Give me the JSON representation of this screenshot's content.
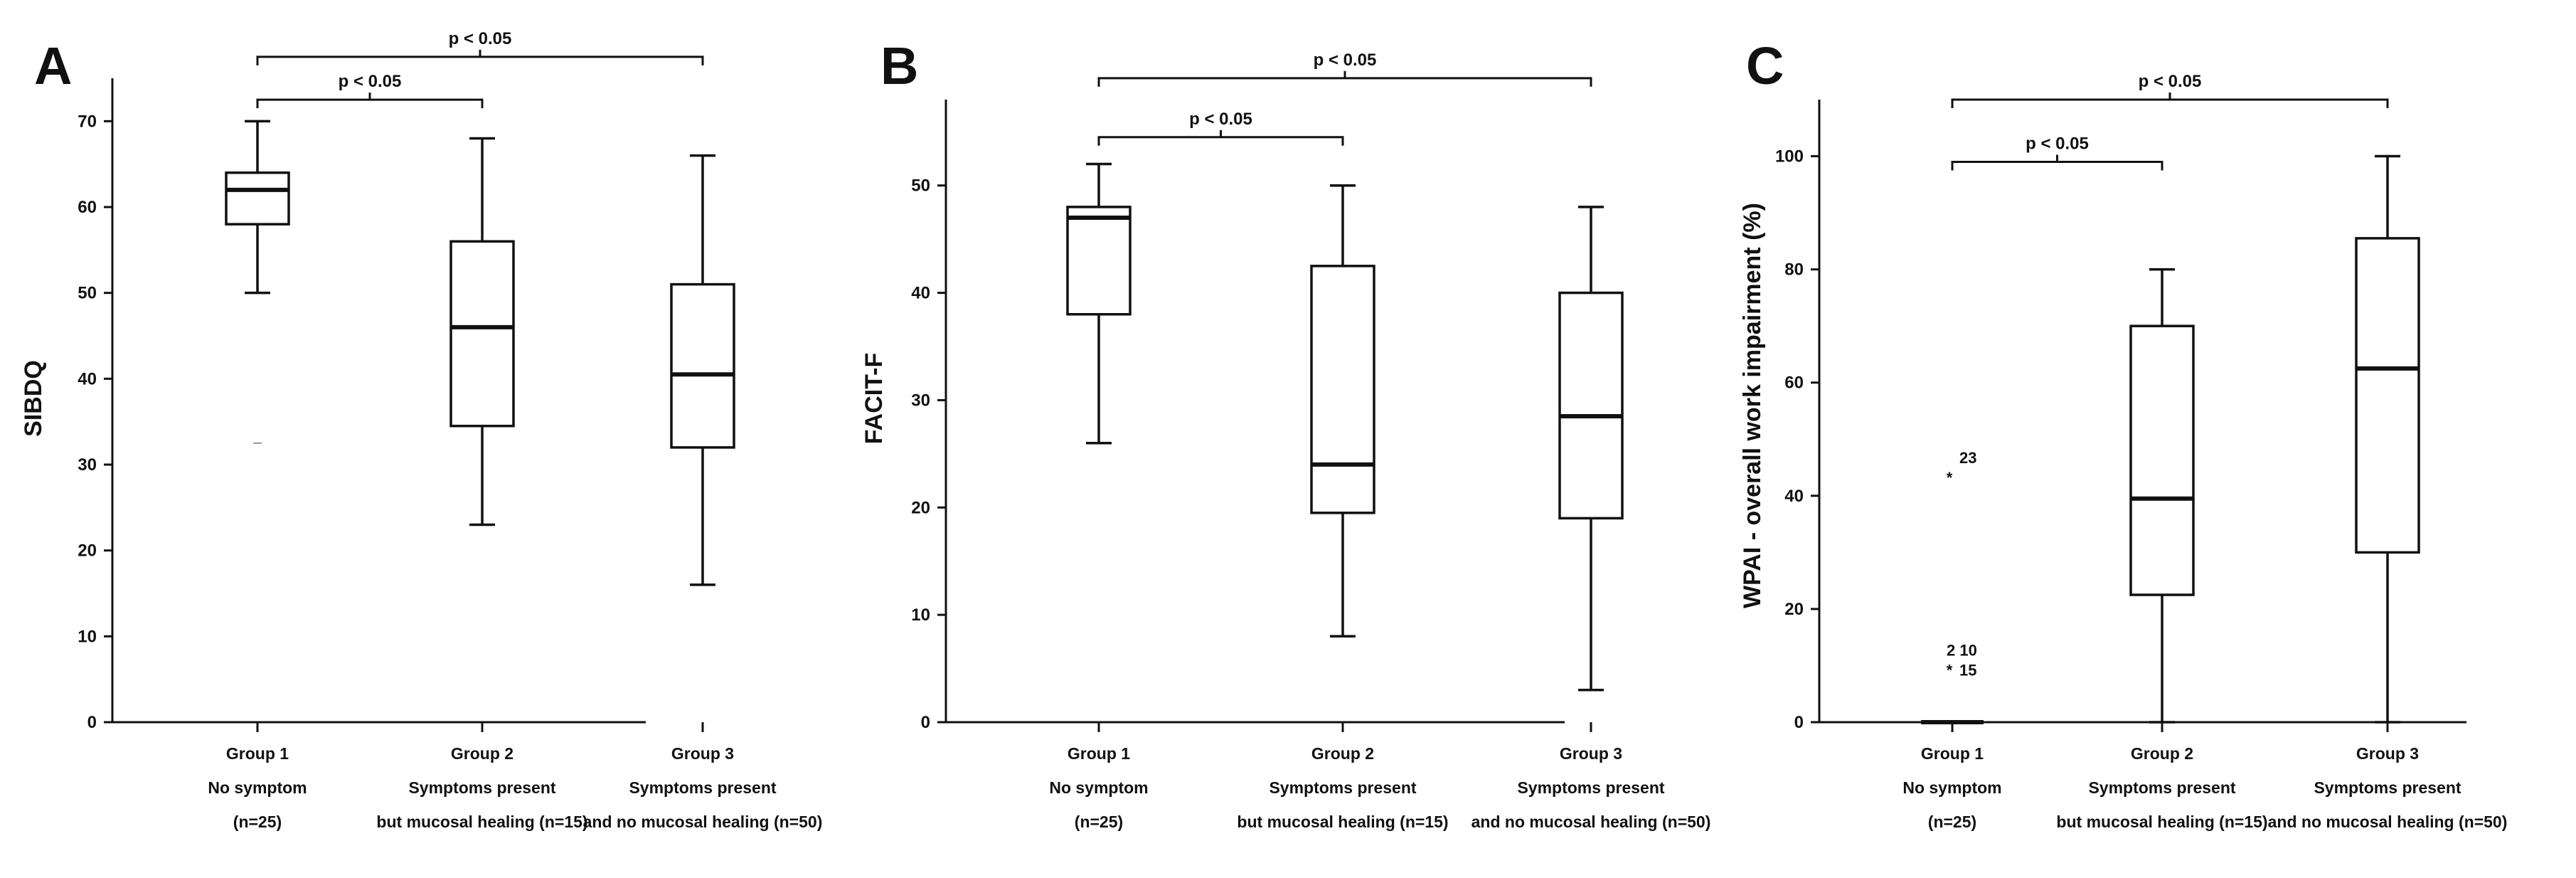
{
  "figure": {
    "colors": {
      "ink": "#111111",
      "box_fill": "#ffffff",
      "background": "#ffffff"
    }
  },
  "chart_data": [
    {
      "type": "box",
      "panel": "A",
      "ylabel": "SIBDQ",
      "ylim": [
        0,
        75
      ],
      "yticks": [
        0,
        10,
        20,
        30,
        40,
        50,
        60,
        70
      ],
      "categories": [
        [
          "Group 1",
          "No symptom",
          "(n=25)"
        ],
        [
          "Group 2",
          "Symptoms present",
          "but mucosal healing (n=15)"
        ],
        [
          "Group 3",
          "Symptoms present",
          "and no mucosal healing (n=50)"
        ]
      ],
      "boxes": [
        {
          "min": 50,
          "q1": 58,
          "median": 62,
          "q3": 64,
          "max": 70
        },
        {
          "min": 23,
          "q1": 34.5,
          "median": 46,
          "q3": 56,
          "max": 68
        },
        {
          "min": 16,
          "q1": 32,
          "median": 40.5,
          "q3": 51,
          "max": 66
        }
      ],
      "outliers": [
        {
          "group": 0,
          "value": 32.5,
          "label": ""
        }
      ],
      "comparisons": [
        {
          "from": 0,
          "to": 1,
          "label": "p < 0.05",
          "level": 72.5
        },
        {
          "from": 0,
          "to": 2,
          "label": "p < 0.05",
          "level": 77.5
        }
      ]
    },
    {
      "type": "box",
      "panel": "B",
      "ylabel": "FACIT-F",
      "ylim": [
        0,
        58
      ],
      "yticks": [
        0,
        10,
        20,
        30,
        40,
        50
      ],
      "categories": [
        [
          "Group 1",
          "No symptom",
          "(n=25)"
        ],
        [
          "Group 2",
          "Symptoms present",
          "but mucosal healing (n=15)"
        ],
        [
          "Group 3",
          "Symptoms present",
          "and no mucosal healing (n=50)"
        ]
      ],
      "boxes": [
        {
          "min": 26,
          "q1": 38,
          "median": 47,
          "q3": 48,
          "max": 52
        },
        {
          "min": 8,
          "q1": 19.5,
          "median": 24,
          "q3": 42.5,
          "max": 50
        },
        {
          "min": 3,
          "q1": 19,
          "median": 28.5,
          "q3": 40,
          "max": 48
        }
      ],
      "outliers": [],
      "comparisons": [
        {
          "from": 0,
          "to": 1,
          "label": "p < 0.05",
          "level": 54.5
        },
        {
          "from": 0,
          "to": 2,
          "label": "p < 0.05",
          "level": 60
        }
      ]
    },
    {
      "type": "box",
      "panel": "C",
      "ylabel": "WPAI - overall work impairment (%)",
      "ylim": [
        0,
        110
      ],
      "yticks": [
        0,
        20,
        40,
        60,
        80,
        100
      ],
      "categories": [
        [
          "Group 1",
          "No symptom",
          "(n=25)"
        ],
        [
          "Group 2",
          "Symptoms present",
          "but mucosal healing (n=15)"
        ],
        [
          "Group 3",
          "Symptoms present",
          "and no mucosal healing (n=50)"
        ]
      ],
      "boxes": [
        {
          "min": 0,
          "q1": 0,
          "median": 0,
          "q3": 0,
          "max": 0
        },
        {
          "min": 0,
          "q1": 22.5,
          "median": 39.5,
          "q3": 70,
          "max": 80
        },
        {
          "min": 0,
          "q1": 30,
          "median": 62.5,
          "q3": 85.5,
          "max": 100
        }
      ],
      "outliers": [
        {
          "group": 0,
          "value": 44,
          "label": "23"
        },
        {
          "group": 0,
          "value": 10,
          "label": "2 10"
        },
        {
          "group": 0,
          "value": 10,
          "label": "15"
        }
      ],
      "comparisons": [
        {
          "from": 0,
          "to": 1,
          "label": "p < 0.05",
          "level": 99
        },
        {
          "from": 0,
          "to": 2,
          "label": "p < 0.05",
          "level": 110
        }
      ]
    }
  ]
}
